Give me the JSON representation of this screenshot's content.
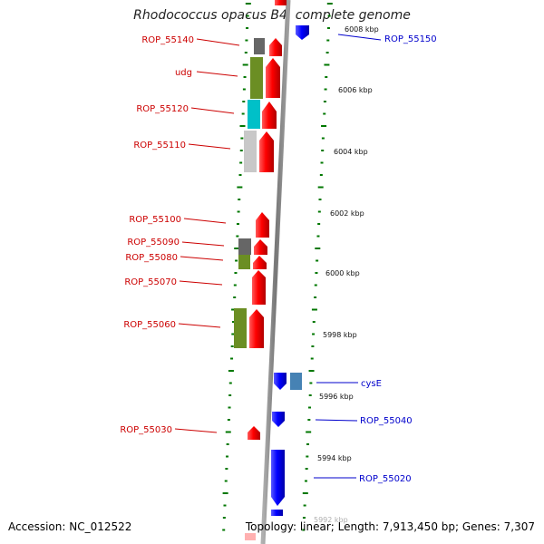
{
  "title": "Rhodococcus opacus B4, complete genome",
  "footer": {
    "accession": "Accession: NC_012522",
    "summary": "Topology: linear; Length: 7,913,450 bp; Genes: 7,307"
  },
  "scale": {
    "unit": "kbp",
    "ticks": [
      {
        "label": "6008 kbp",
        "pos": 6008
      },
      {
        "label": "6006 kbp",
        "pos": 6006
      },
      {
        "label": "6004 kbp",
        "pos": 6004
      },
      {
        "label": "6002 kbp",
        "pos": 6002
      },
      {
        "label": "6000 kbp",
        "pos": 6000
      },
      {
        "label": "5998 kbp",
        "pos": 5998
      },
      {
        "label": "5996 kbp",
        "pos": 5996
      },
      {
        "label": "5994 kbp",
        "pos": 5994
      },
      {
        "label": "5992 kbp",
        "pos": 5992
      }
    ]
  },
  "genes_left": [
    {
      "label": "ROP_55140"
    },
    {
      "label": "udg"
    },
    {
      "label": "ROP_55120"
    },
    {
      "label": "ROP_55110"
    },
    {
      "label": "ROP_55100"
    },
    {
      "label": "ROP_55090"
    },
    {
      "label": "ROP_55080"
    },
    {
      "label": "ROP_55070"
    },
    {
      "label": "ROP_55060"
    },
    {
      "label": "ROP_55030"
    }
  ],
  "genes_right": [
    {
      "label": "ROP_55150"
    },
    {
      "label": "cysE"
    },
    {
      "label": "ROP_55040"
    },
    {
      "label": "ROP_55020"
    }
  ],
  "colors": {
    "forward_strand": "#ff0000",
    "reverse_strand": "#0000ff",
    "label_forward": "#cc0000",
    "label_reverse": "#0000cc",
    "axis": "#808080",
    "tick": "#007700",
    "cog_gray": "#666666",
    "cog_olive": "#6b8e23",
    "cog_cyan": "#00c0c8",
    "cog_lightgray": "#c8c8c8",
    "cog_steelblue": "#4682b4"
  }
}
